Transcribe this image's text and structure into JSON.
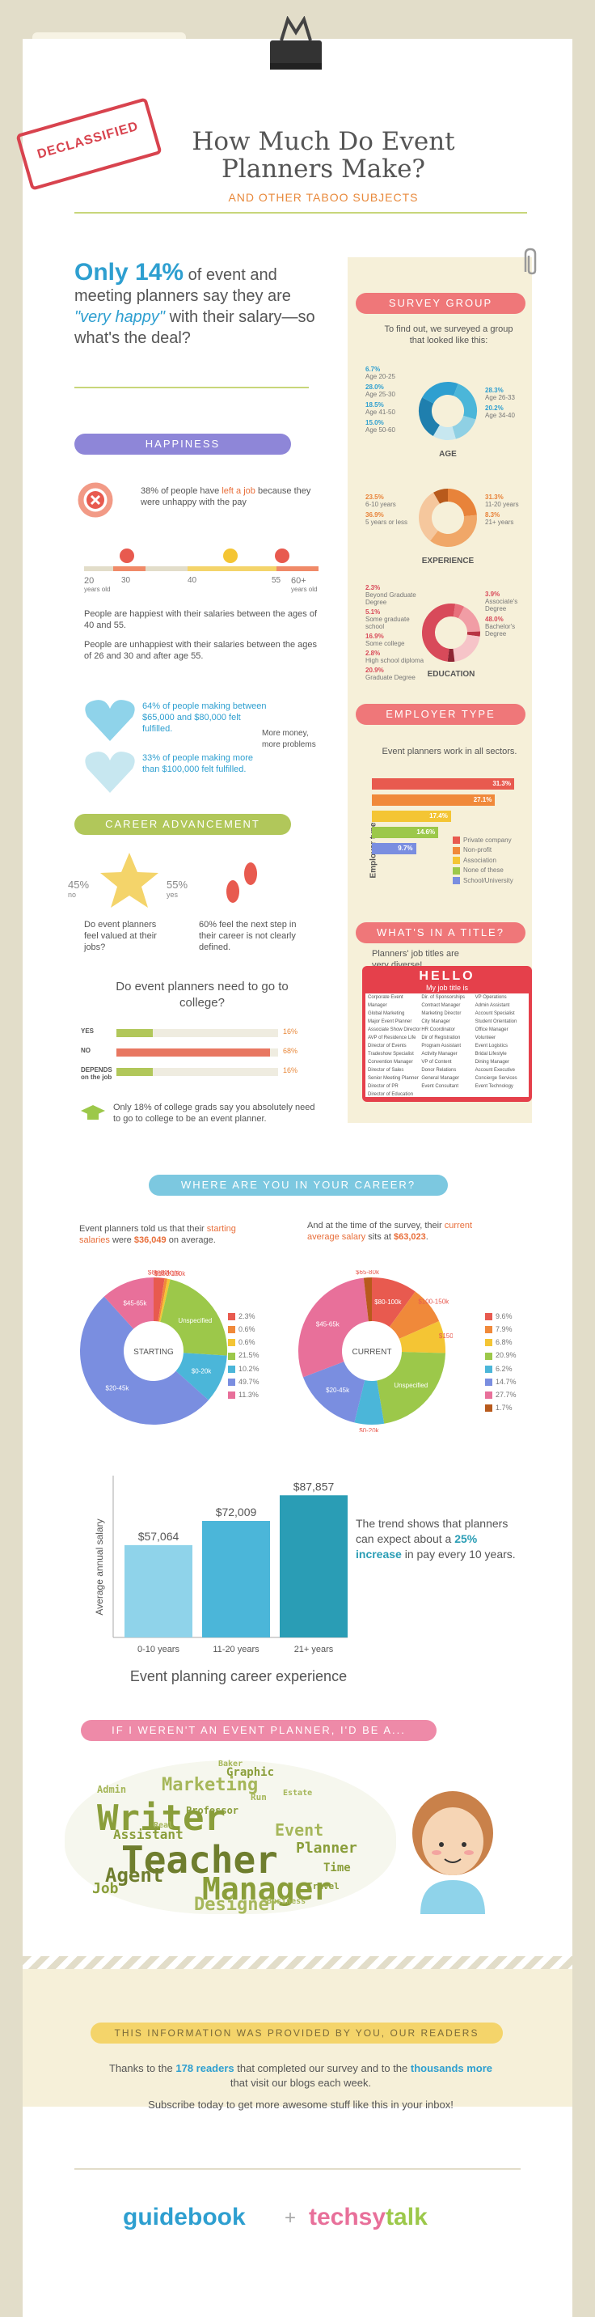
{
  "brand": {
    "tab_logo": "guidebook"
  },
  "header": {
    "stamp": "DECLASSIFIED",
    "title_line1": "How Much Do Event",
    "title_line2": "Planners Make?",
    "subtitle": "AND OTHER TABOO SUBJECTS"
  },
  "intro": {
    "big_stat": "Only 14%",
    "text1": " of event and meeting planners say they are ",
    "quote": "\"very happy\"",
    "text2": " with their salary—so what's the deal?"
  },
  "survey": {
    "banner": "SURVEY GROUP",
    "intro": "To find out, we surveyed a group that looked like this:",
    "age_title": "AGE",
    "age_left": [
      "6.7%",
      "Age 20-25",
      "28.0%",
      "Age 25-30",
      "18.5%",
      "Age 41-50",
      "15.0%",
      "Age 50-60"
    ],
    "age_right": [
      "28.3%",
      "Age 26-33",
      "20.2%",
      "Age 34-40"
    ],
    "experience_title": "EXPERIENCE",
    "exp_left": [
      "23.5%",
      "6-10 years",
      "36.9%",
      "5 years or less"
    ],
    "exp_right": [
      "31.3%",
      "11-20 years",
      "8.3%",
      "21+ years"
    ],
    "education_title": "EDUCATION",
    "edu_left": [
      "2.3%",
      "Beyond Graduate Degree",
      "5.1%",
      "Some graduate school",
      "16.9%",
      "Some college",
      "2.8%",
      "High school diploma",
      "20.9%",
      "Graduate Degree"
    ],
    "edu_right": [
      "3.9%",
      "Associate's Degree",
      "48.0%",
      "Bachelor's Degree"
    ],
    "colors": {
      "age": [
        "#2e9fd0",
        "#4bb6d9",
        "#8fd0e4",
        "#c7e7f0",
        "#1f7fae"
      ],
      "exp": [
        "#e8833a",
        "#f0a768",
        "#f5c79d",
        "#b85a1c"
      ],
      "edu": [
        "#d84a5a",
        "#e8707c",
        "#f19da5",
        "#b83443",
        "#f6c4c8",
        "#8e2433"
      ]
    }
  },
  "happiness": {
    "banner": "HAPPINESS",
    "left_stat_pre": "38% of people have ",
    "left_stat_em": "left a job",
    "left_stat_post": " because they were unhappy with the pay",
    "age_start": "20",
    "age_start_label": "years old",
    "age_end": "60+",
    "age_end_label": "years old",
    "marker_30": "30",
    "marker_40": "40",
    "marker_55": "55",
    "bullet1": "People are happiest with their salaries between the ages of 40 and 55.",
    "bullet2": "People are unhappiest with their salaries between the ages of 26 and 30 and after age 55.",
    "heart1": "64% of people making between $65,000 and $80,000 felt fulfilled.",
    "heart2": "33% of people making more than $100,000 felt fulfilled.",
    "note": "More money, more problems"
  },
  "career_adv": {
    "banner": "CAREER ADVANCEMENT",
    "star_left": "45%",
    "star_left_sub": "no",
    "star_right": "55%",
    "star_right_sub": "yes",
    "star_text": "Do event planners feel valued at their jobs?",
    "steps_text": "60% feel the next step in their career is not clearly defined.",
    "college_q": "Do event planners need to go to college?",
    "bars": [
      {
        "label": "YES",
        "value": "16%",
        "pct": 16
      },
      {
        "label": "NO",
        "value": "68%",
        "pct": 68
      },
      {
        "label": "DEPENDS on the job",
        "value": "16%",
        "pct": 16
      }
    ],
    "grad_text": "Only 18% of college grads say you absolutely need to go to college to be an event planner."
  },
  "employer": {
    "banner": "EMPLOYER TYPE",
    "intro": "Event planners work in all sectors.",
    "axis": "Employer type",
    "bars": [
      {
        "value": "31.3%",
        "pct": 31.3,
        "color": "#e85a4f"
      },
      {
        "value": "27.1%",
        "pct": 27.1,
        "color": "#f0893a"
      },
      {
        "value": "17.4%",
        "pct": 17.4,
        "color": "#f4c534"
      },
      {
        "value": "14.6%",
        "pct": 14.6,
        "color": "#9cc84a"
      },
      {
        "value": "9.7%",
        "pct": 9.7,
        "color": "#7a8ee0"
      }
    ],
    "legend": [
      "Private company",
      "Non-profit",
      "Association",
      "None of these",
      "School/University"
    ]
  },
  "title_section": {
    "banner": "WHAT'S IN A TITLE?",
    "intro": "Planners' job titles are very diverse!",
    "hello": "HELLO",
    "mytitle": "My job title is",
    "col1": [
      "Corporate Event Manager",
      "Global Marketing",
      "Major Event Planner",
      "Associate Show Director",
      "AVP of Residence Life",
      "Director of Events",
      "Tradeshow Specialist",
      "Convention Manager",
      "Director of Sales",
      "Senior Meeting Planner",
      "Director of PR",
      "Director of Education"
    ],
    "col2": [
      "Dir. of Sponsorships",
      "Contract Manager",
      "Marketing Director",
      "City Manager",
      "HR Coordinator",
      "Dir of Registration",
      "Program Assistant",
      "Activity Manager",
      "VP of Content",
      "Donor Relations",
      "General Manager",
      "Event Consultant"
    ],
    "col3": [
      "VP Operations",
      "Admin Assistant",
      "Account Specialist",
      "Student Orientation",
      "Office Manager",
      "Volunteer",
      "Event Logistics",
      "Bridal Lifestyle",
      "Dining Manager",
      "Account Executive",
      "Concierge Services",
      "Event Technology"
    ]
  },
  "where": {
    "banner": "WHERE ARE YOU IN YOUR CAREER?",
    "start_pre": "Event planners told us that their ",
    "start_em": "starting salaries",
    "start_mid": " were ",
    "start_val": "$36,049",
    "start_post": " on average.",
    "cur_pre": "And at the time of the survey, their ",
    "cur_em": "current average salary",
    "cur_mid": " sits at ",
    "cur_val": "$63,023",
    "cur_post": ".",
    "starting_label": "STARTING",
    "current_label": "CURRENT",
    "starting_slices": [
      {
        "label": "$65-80k",
        "value": 2.3,
        "text": "2.3%",
        "color": "#e85a4f"
      },
      {
        "label": "$80-100k",
        "value": 0.6,
        "text": "0.6%",
        "color": "#f0893a"
      },
      {
        "label": "$100-150k",
        "value": 0.6,
        "text": "0.6%",
        "color": "#f4c534"
      },
      {
        "label": "Unspecified",
        "value": 21.5,
        "text": "21.5%",
        "color": "#9cc84a"
      },
      {
        "label": "$0-20k",
        "value": 10.2,
        "text": "10.2%",
        "color": "#4bb6d9"
      },
      {
        "label": "$20-45k",
        "value": 49.7,
        "text": "49.7%",
        "color": "#7a8ee0"
      },
      {
        "label": "$45-65k",
        "value": 11.3,
        "text": "11.3%",
        "color": "#e8709a"
      }
    ],
    "current_slices": [
      {
        "label": "$80-100k",
        "value": 9.6,
        "text": "9.6%",
        "color": "#e85a4f"
      },
      {
        "label": "$100-150k",
        "value": 7.9,
        "text": "7.9%",
        "color": "#f0893a"
      },
      {
        "label": "$150k+",
        "value": 6.8,
        "text": "6.8%",
        "color": "#f4c534"
      },
      {
        "label": "Unspecified",
        "value": 20.9,
        "text": "20.9%",
        "color": "#9cc84a"
      },
      {
        "label": "$0-20k",
        "value": 6.2,
        "text": "6.2%",
        "color": "#4bb6d9"
      },
      {
        "label": "$20-45k",
        "value": 14.7,
        "text": "14.7%",
        "color": "#7a8ee0"
      },
      {
        "label": "$45-65k",
        "value": 27.7,
        "text": "27.7%",
        "color": "#e8709a"
      },
      {
        "label": "$65-80k",
        "value": 1.7,
        "text": "1.7%",
        "color": "#b85a1c"
      }
    ]
  },
  "chart_data": {
    "type": "bar",
    "categories": [
      "0-10 years",
      "11-20 years",
      "21+ years"
    ],
    "values": [
      57064,
      72009,
      87857
    ],
    "value_labels": [
      "$57,064",
      "$72,009",
      "$87,857"
    ],
    "xlabel": "Event planning career experience",
    "ylabel": "Average annual salary",
    "colors": [
      "#8fd3ea",
      "#4bb6d9",
      "#2a9db5"
    ]
  },
  "trend_pre": "The trend shows that planners can expect about a ",
  "trend_em": "25% increase",
  "trend_post": " in pay every 10 years.",
  "wordcloud": {
    "banner": "IF I WEREN'T AN EVENT PLANNER, I'D BE A...",
    "words": [
      "Writer",
      "Teacher",
      "Manager",
      "Designer",
      "Marketing",
      "Agent",
      "Event",
      "Job",
      "Planner",
      "Admin",
      "Assistant",
      "Travel",
      "Business",
      "Graphic",
      "Baker",
      "Time",
      "Run",
      "Professor",
      "Real",
      "Estate"
    ]
  },
  "footer": {
    "banner": "THIS INFORMATION WAS PROVIDED BY YOU, OUR READERS",
    "thanks_pre": "Thanks to the ",
    "thanks_num": "178 readers",
    "thanks_mid": " that completed our survey and to the ",
    "thanks_em": "thousands more",
    "thanks_post": " that visit our blogs each week.",
    "subscribe": "Subscribe today to get more awesome stuff like this in your inbox!",
    "logo1": "guidebook",
    "plus": "+",
    "logo2a": "techsy",
    "logo2b": "talk"
  }
}
